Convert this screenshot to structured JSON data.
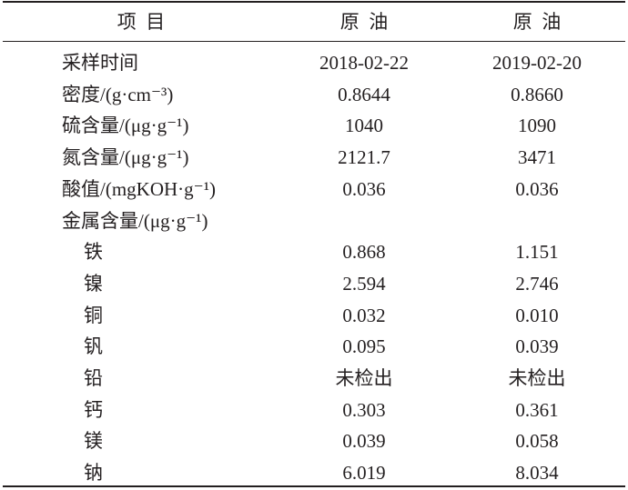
{
  "table": {
    "header": [
      "项  目",
      "原  油",
      "原  油"
    ],
    "rows": [
      [
        "采样时间",
        "2018-02-22",
        "2019-02-20"
      ],
      [
        "密度/(g·cm⁻³)",
        "0.8644",
        "0.8660"
      ],
      [
        "硫含量/(μg·g⁻¹)",
        "1040",
        "1090"
      ],
      [
        "氮含量/(μg·g⁻¹)",
        "2121.7",
        "3471"
      ],
      [
        "酸值/(mgKOH·g⁻¹)",
        "0.036",
        "0.036"
      ],
      [
        "金属含量/(μg·g⁻¹)"
      ],
      [
        "铁",
        "0.868",
        "1.151"
      ],
      [
        "镍",
        "2.594",
        "2.746"
      ],
      [
        "铜",
        "0.032",
        "0.010"
      ],
      [
        "钒",
        "0.095",
        "0.039"
      ],
      [
        "铅",
        "未检出",
        "未检出"
      ],
      [
        "钙",
        "0.303",
        "0.361"
      ],
      [
        "镁",
        "0.039",
        "0.058"
      ],
      [
        "钠",
        "6.019",
        "8.034"
      ]
    ],
    "indented_from": 6
  }
}
